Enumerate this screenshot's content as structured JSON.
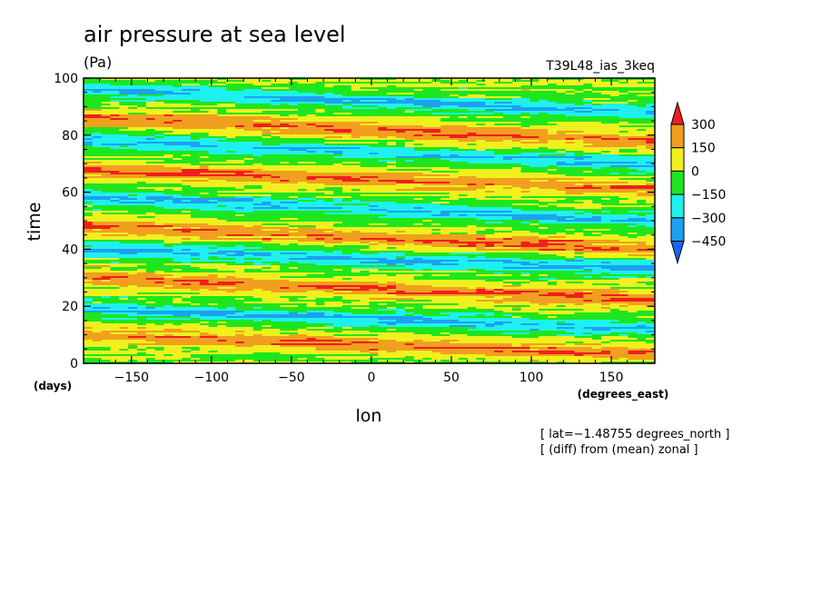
{
  "chart_data": {
    "type": "heatmap",
    "title": "air pressure at sea level",
    "subtitle": "(Pa)",
    "run_label": "T39L48_ias_3keq",
    "xlabel": "lon",
    "x_units": "(degrees_east)",
    "ylabel": "time",
    "y_units": "(days)",
    "xlim": [
      -180,
      177.1875
    ],
    "ylim": [
      0,
      100
    ],
    "x_ticks": [
      -150,
      -100,
      -50,
      0,
      50,
      100,
      150
    ],
    "y_ticks": [
      0,
      20,
      40,
      60,
      80,
      100
    ],
    "annotations": [
      "[ lat=−1.48755 degrees_north ]",
      "[ (diff) from (mean) zonal ]"
    ],
    "colorbar": {
      "levels": [
        -450,
        -300,
        -150,
        0,
        150,
        300
      ],
      "level_labels": [
        "−450",
        "−300",
        "−150",
        "0",
        "150",
        "300"
      ],
      "colors": [
        "#1a64f0",
        "#1ea0f0",
        "#1ef0f0",
        "#1ee61e",
        "#f0f01e",
        "#f0a01e",
        "#f01e1e"
      ],
      "extend": "both"
    },
    "pattern": {
      "description_values": "anomaly field with bands propagating eastward",
      "bands_days": [
        {
          "start_day": 10,
          "end_day": 3,
          "sign": "positive"
        },
        {
          "start_day": 30,
          "end_day": 22,
          "sign": "positive"
        },
        {
          "start_day": 48,
          "end_day": 40,
          "sign": "positive"
        },
        {
          "start_day": 68,
          "end_day": 61,
          "sign": "positive"
        },
        {
          "start_day": 86,
          "end_day": 78,
          "sign": "positive"
        },
        {
          "start_day": 19,
          "end_day": 12,
          "sign": "negative"
        },
        {
          "start_day": 40,
          "end_day": 33,
          "sign": "negative"
        },
        {
          "start_day": 58,
          "end_day": 50,
          "sign": "negative"
        },
        {
          "start_day": 78,
          "end_day": 70,
          "sign": "negative"
        },
        {
          "start_day": 96,
          "end_day": 88,
          "sign": "negative"
        }
      ]
    }
  }
}
